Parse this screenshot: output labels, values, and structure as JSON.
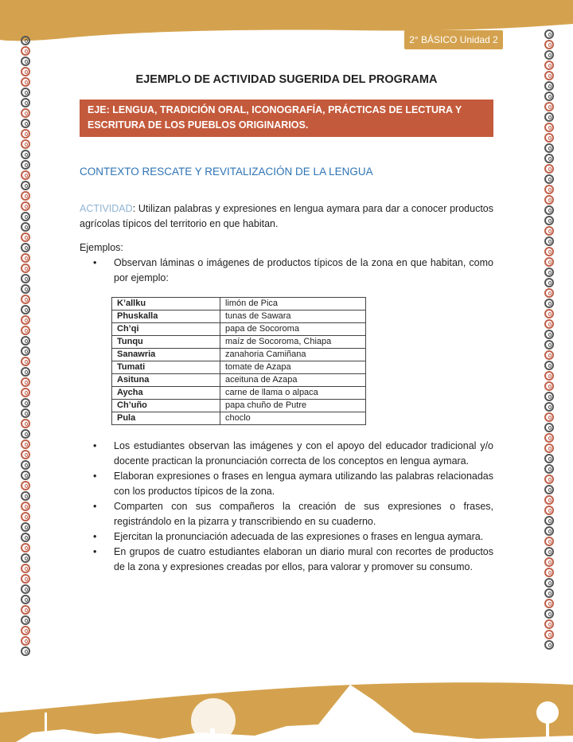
{
  "header": {
    "badge": "2° BÁSICO Unidad 2"
  },
  "title": "EJEMPLO DE ACTIVIDAD SUGERIDA DEL PROGRAMA",
  "eje": "EJE: LENGUA, TRADICIÓN ORAL, ICONOGRAFÍA, PRÁCTICAS DE LECTURA Y ESCRITURA DE LOS PUEBLOS ORIGINARIOS.",
  "context_heading": "CONTEXTO RESCATE Y REVITALIZACIÓN DE LA LENGUA",
  "activity": {
    "label": "ACTIVIDAD",
    "text": ": Utilizan palabras y expresiones en lengua aymara para dar a conocer productos agrícolas típicos del territorio en que habitan."
  },
  "examples_label": "Ejemplos:",
  "first_bullet": "Observan láminas o imágenes de productos típicos de la zona en que habitan, como por ejemplo:",
  "table": [
    [
      "K’allku",
      "limón de Pica"
    ],
    [
      "Phuskalla",
      "tunas de Sawara"
    ],
    [
      "Ch’qi",
      "papa de Socoroma"
    ],
    [
      "Tunqu",
      "maíz de Socoroma, Chiapa"
    ],
    [
      "Sanawria",
      "zanahoria Camiñana"
    ],
    [
      "Tumati",
      "tomate de Azapa"
    ],
    [
      "Asituna",
      "aceituna de Azapa"
    ],
    [
      "Aycha",
      "carne de llama o alpaca"
    ],
    [
      "Ch’uño",
      "papa chuño de Putre"
    ],
    [
      "Pula",
      "choclo"
    ]
  ],
  "bullets": [
    "Los estudiantes observan las imágenes y con el apoyo del educador tradicional y/o docente practican la pronunciación correcta de los conceptos en lengua aymara.",
    "Elaboran expresiones o frases en lengua aymara utilizando las palabras relacionadas con los productos típicos de la zona.",
    "Comparten con sus compañeros la creación de sus expresiones o frases, registrándolo en la pizarra y transcribiendo en su cuaderno.",
    "Ejercitan la pronunciación adecuada de las expresiones o frases en lengua aymara.",
    "En grupos de cuatro estudiantes elaboran un diario mural con recortes de productos de la zona y expresiones creadas por ellos, para valorar y promover su consumo."
  ],
  "colors": {
    "gold": "#d4a24e",
    "red": "#c45a3c",
    "blue": "#2e74b5"
  }
}
